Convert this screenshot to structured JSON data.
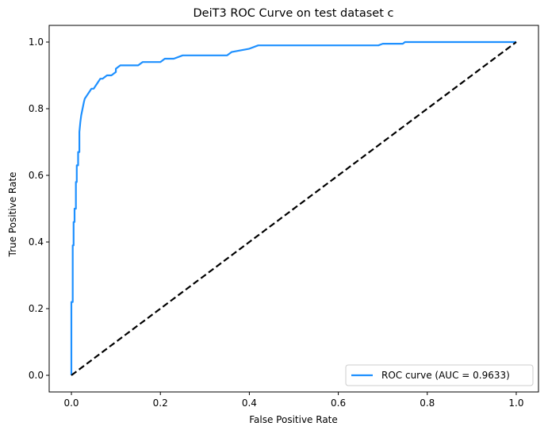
{
  "chart_data": {
    "type": "line",
    "title": "DeiT3 ROC Curve on test dataset c",
    "xlabel": "False Positive Rate",
    "ylabel": "True Positive Rate",
    "xlim": [
      -0.05,
      1.05
    ],
    "ylim": [
      -0.05,
      1.05
    ],
    "xticks": [
      0.0,
      0.2,
      0.4,
      0.6,
      0.8,
      1.0
    ],
    "yticks": [
      0.0,
      0.2,
      0.4,
      0.6,
      0.8,
      1.0
    ],
    "xtick_labels": [
      "0.0",
      "0.2",
      "0.4",
      "0.6",
      "0.8",
      "1.0"
    ],
    "ytick_labels": [
      "0.0",
      "0.2",
      "0.4",
      "0.6",
      "0.8",
      "1.0"
    ],
    "grid": false,
    "legend_position": "lower right",
    "series": [
      {
        "name": "ROC curve (AUC = 0.9633)",
        "color": "#1e90ff",
        "style": "solid",
        "x": [
          0.0,
          0.0,
          0.003,
          0.003,
          0.005,
          0.005,
          0.007,
          0.007,
          0.01,
          0.01,
          0.012,
          0.012,
          0.015,
          0.015,
          0.018,
          0.018,
          0.02,
          0.022,
          0.025,
          0.028,
          0.03,
          0.035,
          0.04,
          0.045,
          0.05,
          0.055,
          0.06,
          0.065,
          0.07,
          0.08,
          0.09,
          0.1,
          0.1,
          0.11,
          0.12,
          0.15,
          0.16,
          0.2,
          0.21,
          0.23,
          0.25,
          0.3,
          0.35,
          0.36,
          0.4,
          0.42,
          0.5,
          0.6,
          0.69,
          0.7,
          0.745,
          0.75,
          0.8,
          0.9,
          1.0
        ],
        "y": [
          0.0,
          0.22,
          0.22,
          0.39,
          0.39,
          0.46,
          0.46,
          0.5,
          0.5,
          0.58,
          0.58,
          0.63,
          0.63,
          0.67,
          0.67,
          0.73,
          0.76,
          0.78,
          0.8,
          0.82,
          0.83,
          0.84,
          0.85,
          0.86,
          0.86,
          0.87,
          0.88,
          0.89,
          0.89,
          0.9,
          0.9,
          0.91,
          0.92,
          0.93,
          0.93,
          0.93,
          0.94,
          0.94,
          0.95,
          0.95,
          0.96,
          0.96,
          0.96,
          0.97,
          0.98,
          0.99,
          0.99,
          0.99,
          0.99,
          0.995,
          0.995,
          1.0,
          1.0,
          1.0,
          1.0
        ]
      },
      {
        "name": "",
        "color": "#000000",
        "style": "dashed",
        "x": [
          0.0,
          1.0
        ],
        "y": [
          0.0,
          1.0
        ]
      }
    ]
  }
}
